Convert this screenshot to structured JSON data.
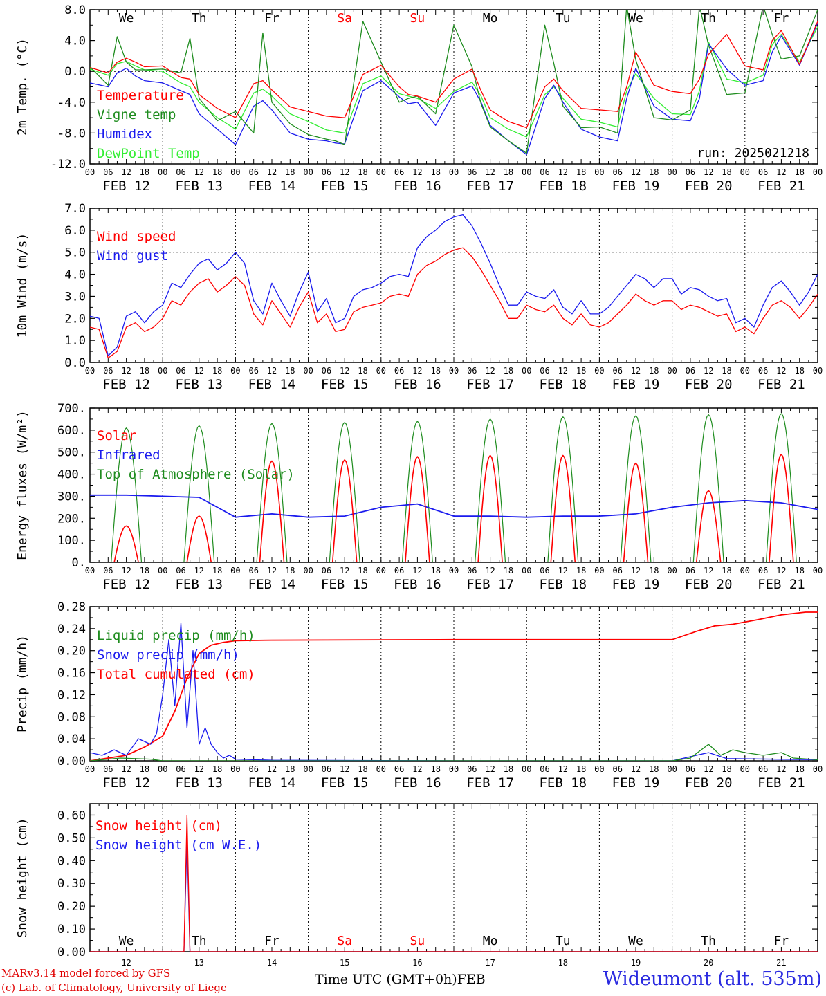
{
  "footer": {
    "credit_line1": "MARv3.14 model forced by GFS",
    "credit_line2": "(c) Lab. of Climatology, University of Liege",
    "xlabel": "Time UTC (GMT+0h)",
    "month": "FEB",
    "station": "Wideumont (alt. 535m)"
  },
  "colors": {
    "red": "#ff0000",
    "green": "#1e8c1e",
    "blue": "#1a1aee",
    "lightgreen": "#33ee33",
    "axis": "#000000"
  },
  "days": {
    "weekdays": [
      "We",
      "Th",
      "Fr",
      "Sa",
      "Su",
      "Mo",
      "Tu",
      "We",
      "Th",
      "Fr"
    ],
    "weekend_flags": [
      false,
      false,
      false,
      true,
      true,
      false,
      false,
      false,
      false,
      false
    ],
    "dates": [
      "FEB 12",
      "FEB 13",
      "FEB 14",
      "FEB 15",
      "FEB 16",
      "FEB 17",
      "FEB 18",
      "FEB 19",
      "FEB 20",
      "FEB 21"
    ],
    "day_numbers": [
      "12",
      "13",
      "14",
      "15",
      "16",
      "17",
      "18",
      "19",
      "20",
      "21"
    ],
    "hour_ticks": [
      "00",
      "06",
      "12",
      "18"
    ],
    "final_hour_tick": "00"
  },
  "chart_data": [
    {
      "type": "line",
      "ylabel": "2m Temp. (°C)",
      "ylim": [
        -12,
        8
      ],
      "yticks": [
        "-12.0",
        "-8.0",
        "-4.0",
        "0.0",
        "4.0",
        "8.0"
      ],
      "ytick_values": [
        -12,
        -8,
        -4,
        0,
        4,
        8
      ],
      "reference_line": 0,
      "annotation": "run: 2025021218",
      "x_hours": [
        0,
        6,
        9,
        12,
        15,
        18,
        24,
        30,
        33,
        36,
        42,
        48,
        54,
        57,
        60,
        66,
        72,
        78,
        81,
        84,
        90,
        96,
        102,
        105,
        108,
        114,
        120,
        126,
        129,
        132,
        138,
        144,
        150,
        153,
        156,
        162,
        168,
        174,
        177,
        180,
        186,
        192,
        198,
        201,
        204,
        210,
        216,
        222,
        225,
        228,
        234,
        240
      ],
      "series": [
        {
          "name": "Temperature",
          "color": "red",
          "values": [
            0.5,
            -0.2,
            1.2,
            1.7,
            1.2,
            0.6,
            0.7,
            -0.8,
            -1.0,
            -3.0,
            -4.8,
            -6.0,
            -1.6,
            -1.2,
            -2.4,
            -4.6,
            -5.2,
            -5.8,
            -5.9,
            -6.0,
            -0.4,
            0.8,
            -2.0,
            -3.0,
            -3.2,
            -4.0,
            -1.0,
            0.3,
            -2.5,
            -5.0,
            -6.5,
            -7.3,
            -2.0,
            -1.0,
            -2.5,
            -4.8,
            -5.0,
            -5.2,
            -2.0,
            2.5,
            -1.8,
            -2.6,
            -2.9,
            -1.0,
            2.2,
            4.8,
            0.7,
            0.2,
            4.0,
            5.3,
            0.9,
            6.5
          ]
        },
        {
          "name": "Vigne temp",
          "color": "green",
          "values": [
            0.6,
            -1.8,
            4.5,
            1.2,
            0.2,
            0.2,
            0.3,
            -0.2,
            4.3,
            -3.5,
            -6.4,
            -5.2,
            -8.0,
            5.0,
            -4.0,
            -6.8,
            -8.2,
            -8.8,
            -9.0,
            -9.5,
            6.5,
            1.2,
            -4.0,
            -3.5,
            -3.2,
            -5.5,
            6.0,
            0.6,
            -4.2,
            -7.2,
            -9.0,
            -10.6,
            6.0,
            1.0,
            -4.5,
            -7.3,
            -7.2,
            -8.0,
            8.5,
            1.5,
            -6.0,
            -6.3,
            -5.0,
            8.5,
            3.4,
            -3.0,
            -2.8,
            8.5,
            4.8,
            1.6,
            2.0,
            8.0
          ]
        },
        {
          "name": "Humidex",
          "color": "blue",
          "values": [
            -1.5,
            -2.0,
            -0.2,
            0.4,
            -0.6,
            -1.2,
            -1.5,
            -2.5,
            -3.0,
            -5.5,
            -7.5,
            -9.5,
            -4.5,
            -3.8,
            -5.0,
            -8.0,
            -8.8,
            -9.0,
            -9.3,
            -9.4,
            -2.5,
            -1.2,
            -3.3,
            -4.2,
            -4.0,
            -7.0,
            -2.8,
            -1.9,
            -4.0,
            -7.0,
            -9.0,
            -10.8,
            -3.5,
            -1.8,
            -4.0,
            -7.5,
            -8.5,
            -9.0,
            -3.5,
            0.4,
            -4.5,
            -6.2,
            -6.4,
            -3.5,
            3.6,
            0.3,
            -1.8,
            -1.2,
            2.5,
            4.6,
            0.8,
            6.3
          ]
        },
        {
          "name": "DewPoint Temp",
          "color": "lightgreen",
          "values": [
            0.3,
            -0.5,
            1.0,
            1.3,
            0.7,
            0.2,
            0.0,
            -1.5,
            -2.0,
            -4.0,
            -6.0,
            -7.5,
            -2.8,
            -2.3,
            -3.2,
            -5.5,
            -6.5,
            -7.6,
            -7.8,
            -8.0,
            -1.6,
            -0.6,
            -2.9,
            -3.2,
            -3.5,
            -4.8,
            -2.6,
            -1.4,
            -3.2,
            -6.0,
            -7.5,
            -8.5,
            -3.0,
            -2.0,
            -3.5,
            -6.2,
            -6.6,
            -7.2,
            -2.5,
            -0.3,
            -3.5,
            -5.5,
            -5.6,
            -2.5,
            3.8,
            -1.0,
            -1.5,
            -0.5,
            3.5,
            4.8,
            1.2,
            5.8
          ]
        }
      ]
    },
    {
      "type": "line",
      "ylabel": "10m Wind (m/s)",
      "ylim": [
        0,
        7
      ],
      "yticks": [
        "0.0",
        "1.0",
        "2.0",
        "3.0",
        "4.0",
        "5.0",
        "6.0",
        "7.0"
      ],
      "ytick_values": [
        0,
        1,
        2,
        3,
        4,
        5,
        6,
        7
      ],
      "reference_line": 5,
      "x_hours": [
        0,
        3,
        6,
        9,
        12,
        15,
        18,
        21,
        24,
        27,
        30,
        33,
        36,
        39,
        42,
        45,
        48,
        51,
        54,
        57,
        60,
        63,
        66,
        69,
        72,
        75,
        78,
        81,
        84,
        87,
        90,
        93,
        96,
        99,
        102,
        105,
        108,
        111,
        114,
        117,
        120,
        123,
        126,
        129,
        132,
        135,
        138,
        141,
        144,
        147,
        150,
        153,
        156,
        159,
        162,
        165,
        168,
        171,
        174,
        177,
        180,
        183,
        186,
        189,
        192,
        195,
        198,
        201,
        204,
        207,
        210,
        213,
        216,
        219,
        222,
        225,
        228,
        231,
        234,
        237,
        240
      ],
      "series": [
        {
          "name": "Wind speed",
          "color": "red",
          "values": [
            1.6,
            1.5,
            0.2,
            0.5,
            1.6,
            1.8,
            1.4,
            1.6,
            2.0,
            2.8,
            2.6,
            3.2,
            3.6,
            3.8,
            3.2,
            3.5,
            3.9,
            3.5,
            2.2,
            1.7,
            2.8,
            2.2,
            1.6,
            2.5,
            3.2,
            1.8,
            2.2,
            1.4,
            1.5,
            2.3,
            2.5,
            2.6,
            2.7,
            3.0,
            3.1,
            3.0,
            4.0,
            4.4,
            4.6,
            4.9,
            5.1,
            5.2,
            4.8,
            4.2,
            3.5,
            2.8,
            2.0,
            2.0,
            2.6,
            2.4,
            2.3,
            2.6,
            2.0,
            1.7,
            2.2,
            1.7,
            1.6,
            1.8,
            2.2,
            2.6,
            3.1,
            2.8,
            2.6,
            2.8,
            2.8,
            2.4,
            2.6,
            2.5,
            2.3,
            2.1,
            2.2,
            1.4,
            1.6,
            1.3,
            2.0,
            2.6,
            2.8,
            2.5,
            2.0,
            2.5,
            3.1
          ]
        },
        {
          "name": "Wind gust",
          "color": "blue",
          "values": [
            2.1,
            2.0,
            0.3,
            0.7,
            2.1,
            2.3,
            1.8,
            2.3,
            2.6,
            3.6,
            3.4,
            4.0,
            4.5,
            4.7,
            4.2,
            4.5,
            5.0,
            4.5,
            2.8,
            2.2,
            3.6,
            2.8,
            2.1,
            3.2,
            4.1,
            2.3,
            2.9,
            1.8,
            2.0,
            3.0,
            3.3,
            3.4,
            3.6,
            3.9,
            4.0,
            3.9,
            5.2,
            5.7,
            6.0,
            6.4,
            6.6,
            6.7,
            6.2,
            5.4,
            4.5,
            3.5,
            2.6,
            2.6,
            3.2,
            3.0,
            2.9,
            3.3,
            2.5,
            2.2,
            2.8,
            2.2,
            2.2,
            2.5,
            3.0,
            3.5,
            4.0,
            3.8,
            3.4,
            3.8,
            3.8,
            3.1,
            3.4,
            3.3,
            3.0,
            2.8,
            2.9,
            1.8,
            2.0,
            1.6,
            2.6,
            3.4,
            3.7,
            3.2,
            2.6,
            3.2,
            4.0
          ]
        }
      ]
    },
    {
      "type": "line",
      "ylabel": "Energy fluxes (W/m²)",
      "ylim": [
        0,
        700
      ],
      "yticks": [
        "0.",
        "100.",
        "200.",
        "300.",
        "400.",
        "500.",
        "600.",
        "700."
      ],
      "ytick_values": [
        0,
        100,
        200,
        300,
        400,
        500,
        600,
        700
      ],
      "diurnal": {
        "peak_hour": 12,
        "toa_half_width_hours": 5,
        "solar_half_width_hours": 4,
        "toa_peaks": [
          610,
          620,
          630,
          635,
          640,
          650,
          660,
          665,
          670,
          675
        ],
        "solar_peaks": [
          165,
          210,
          460,
          465,
          480,
          485,
          485,
          450,
          325,
          490
        ]
      },
      "series": [
        {
          "name": "Solar",
          "color": "red"
        },
        {
          "name": "Infrared",
          "color": "blue",
          "x_hours": [
            0,
            12,
            24,
            36,
            48,
            60,
            72,
            84,
            96,
            108,
            120,
            132,
            144,
            156,
            168,
            180,
            192,
            204,
            216,
            228,
            240
          ],
          "values": [
            305,
            305,
            300,
            295,
            205,
            220,
            205,
            210,
            250,
            265,
            210,
            210,
            205,
            210,
            210,
            220,
            250,
            270,
            280,
            270,
            240
          ]
        },
        {
          "name": "Top of Atmosphere (Solar)",
          "color": "green"
        }
      ]
    },
    {
      "type": "line",
      "ylabel": "Precip (mm/h)",
      "ylim": [
        0,
        0.28
      ],
      "yticks": [
        "0.00",
        "0.04",
        "0.08",
        "0.12",
        "0.16",
        "0.20",
        "0.24",
        "0.28"
      ],
      "ytick_values": [
        0,
        0.04,
        0.08,
        0.12,
        0.16,
        0.2,
        0.24,
        0.28
      ],
      "series": [
        {
          "name": "Liquid precip (mm/h)",
          "color": "green",
          "x_hours": [
            0,
            10,
            20,
            24,
            30,
            36,
            48,
            120,
            192,
            198,
            204,
            208,
            212,
            216,
            222,
            228,
            232,
            240
          ],
          "values": [
            0,
            0.005,
            0.003,
            0,
            0,
            0,
            0,
            0,
            0,
            0.005,
            0.03,
            0.01,
            0.02,
            0.015,
            0.01,
            0.015,
            0.005,
            0.002
          ]
        },
        {
          "name": "Snow precip (mm/h)",
          "color": "blue",
          "x_hours": [
            0,
            4,
            8,
            12,
            16,
            20,
            22,
            24,
            26,
            28,
            30,
            32,
            34,
            36,
            38,
            40,
            42,
            44,
            46,
            48,
            60,
            120,
            192,
            196,
            200,
            204,
            210,
            240
          ],
          "values": [
            0.015,
            0.01,
            0.02,
            0.01,
            0.04,
            0.03,
            0.05,
            0.12,
            0.22,
            0.1,
            0.25,
            0.06,
            0.2,
            0.03,
            0.06,
            0.03,
            0.015,
            0.005,
            0.01,
            0.003,
            0.001,
            0,
            0,
            0.005,
            0.01,
            0.015,
            0.004,
            0.002
          ]
        },
        {
          "name": "Total cumulated (cm)",
          "color": "red",
          "x_hours": [
            0,
            12,
            18,
            24,
            28,
            32,
            36,
            40,
            44,
            48,
            60,
            120,
            192,
            200,
            206,
            212,
            220,
            228,
            236,
            240
          ],
          "values": [
            0,
            0.01,
            0.025,
            0.045,
            0.09,
            0.15,
            0.195,
            0.21,
            0.215,
            0.218,
            0.219,
            0.22,
            0.22,
            0.235,
            0.245,
            0.248,
            0.256,
            0.265,
            0.27,
            0.27
          ]
        }
      ]
    },
    {
      "type": "line",
      "ylabel": "Snow height (cm)",
      "ylim": [
        0,
        0.65
      ],
      "yticks": [
        "0.00",
        "0.10",
        "0.20",
        "0.30",
        "0.40",
        "0.50",
        "0.60"
      ],
      "ytick_values": [
        0,
        0.1,
        0.2,
        0.3,
        0.4,
        0.5,
        0.6
      ],
      "series": [
        {
          "name": "Snow height (cm)",
          "color": "red",
          "x_hours": [
            0,
            31,
            32,
            33,
            240
          ],
          "values": [
            0,
            0,
            0.6,
            0,
            0
          ]
        },
        {
          "name": "Snow height (cm W.E.)",
          "color": "blue",
          "x_hours": [
            0,
            31,
            32,
            33,
            240
          ],
          "values": [
            0,
            0,
            0.5,
            0,
            0
          ]
        }
      ]
    }
  ]
}
